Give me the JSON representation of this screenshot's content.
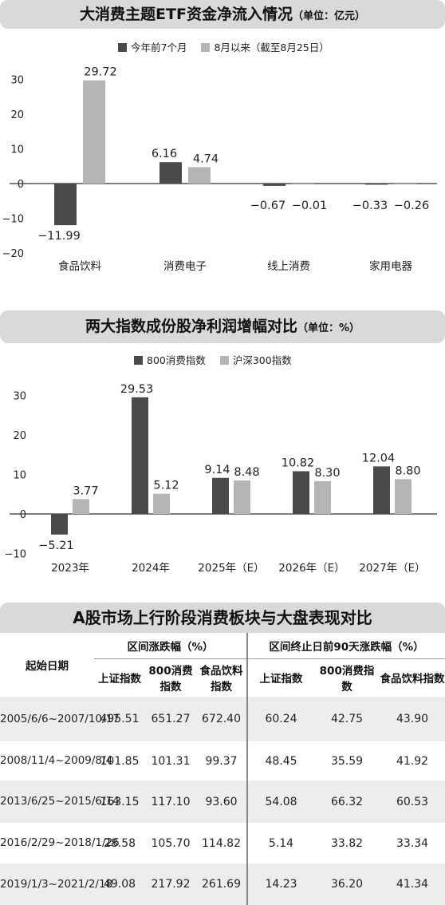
{
  "chart1": {
    "title": "大消费主题ETF资金净流入情况",
    "unit": "（单位：亿元）",
    "chart_data": {
      "type": "bar",
      "title": "大消费主题ETF资金净流入情况（单位：亿元）",
      "categories": [
        "食品饮料",
        "消费电子",
        "线上消费",
        "家用电器"
      ],
      "series": [
        {
          "name": "今年前7个月",
          "values": [
            -11.99,
            6.16,
            -0.67,
            -0.33
          ],
          "labels": [
            "−11.99",
            "6.16",
            "−0.67",
            "−0.33"
          ],
          "color": "#4a4a4a"
        },
        {
          "name": "8月以来（截至8月25日）",
          "values": [
            29.72,
            4.74,
            -0.01,
            -0.26
          ],
          "labels": [
            "29.72",
            "4.74",
            "−0.01",
            "−0.26"
          ],
          "color": "#b5b5b5"
        }
      ],
      "yticks": [
        30,
        20,
        10,
        0,
        -10,
        -20
      ],
      "ytick_labels": [
        "30",
        "20",
        "10",
        "0",
        "−10",
        "−20"
      ],
      "ylim": [
        -20,
        30
      ],
      "legend": "top-left"
    }
  },
  "chart2": {
    "title": "两大指数成份股净利润增幅对比",
    "unit": "（单位：%）",
    "chart_data": {
      "type": "bar",
      "title": "两大指数成份股净利润增幅对比（单位：%）",
      "categories": [
        "2023年",
        "2024年",
        "2025年（E）",
        "2026年（E）",
        "2027年（E）"
      ],
      "series": [
        {
          "name": "800消费指数",
          "values": [
            -5.21,
            29.53,
            9.14,
            10.82,
            12.04
          ],
          "labels": [
            "−5.21",
            "29.53",
            "9.14",
            "10.82",
            "12.04"
          ],
          "color": "#4a4a4a"
        },
        {
          "name": "沪深300指数",
          "values": [
            3.77,
            5.12,
            8.48,
            8.3,
            8.8
          ],
          "labels": [
            "3.77",
            "5.12",
            "8.48",
            "8.30",
            "8.80"
          ],
          "color": "#b5b5b5"
        }
      ],
      "yticks": [
        30,
        20,
        10,
        0,
        -10
      ],
      "ytick_labels": [
        "30",
        "20",
        "10",
        "0",
        "−10"
      ],
      "ylim": [
        -10,
        30
      ],
      "legend": "top-left"
    }
  },
  "table": {
    "title": "A股市场上行阶段消费板块与大盘表现对比",
    "start_header": "起始日期",
    "group1": "区间涨跌幅（%）",
    "group2": "区间终止日前90天涨跌幅（%）",
    "columns": [
      "上证指数",
      "800消费指数",
      "食品饮料指数",
      "上证指数",
      "800消费指数",
      "食品饮料指数"
    ],
    "rows": [
      {
        "date": "2005/6/6~2007/10/17",
        "values": [
          "495.51",
          "651.27",
          "672.40",
          "60.24",
          "42.75",
          "43.90"
        ]
      },
      {
        "date": "2008/11/4~2009/8/4",
        "values": [
          "101.85",
          "101.31",
          "99.37",
          "48.45",
          "35.59",
          "41.92"
        ]
      },
      {
        "date": "2013/6/25~2015/6/14",
        "values": [
          "163.15",
          "117.10",
          "93.60",
          "54.08",
          "66.32",
          "60.53"
        ]
      },
      {
        "date": "2016/2/29~2018/1/26",
        "values": [
          "28.58",
          "105.70",
          "114.82",
          "5.14",
          "33.82",
          "33.34"
        ]
      },
      {
        "date": "2019/1/3~2021/2/18",
        "values": [
          "49.08",
          "217.92",
          "261.69",
          "14.23",
          "36.20",
          "41.34"
        ]
      }
    ]
  }
}
